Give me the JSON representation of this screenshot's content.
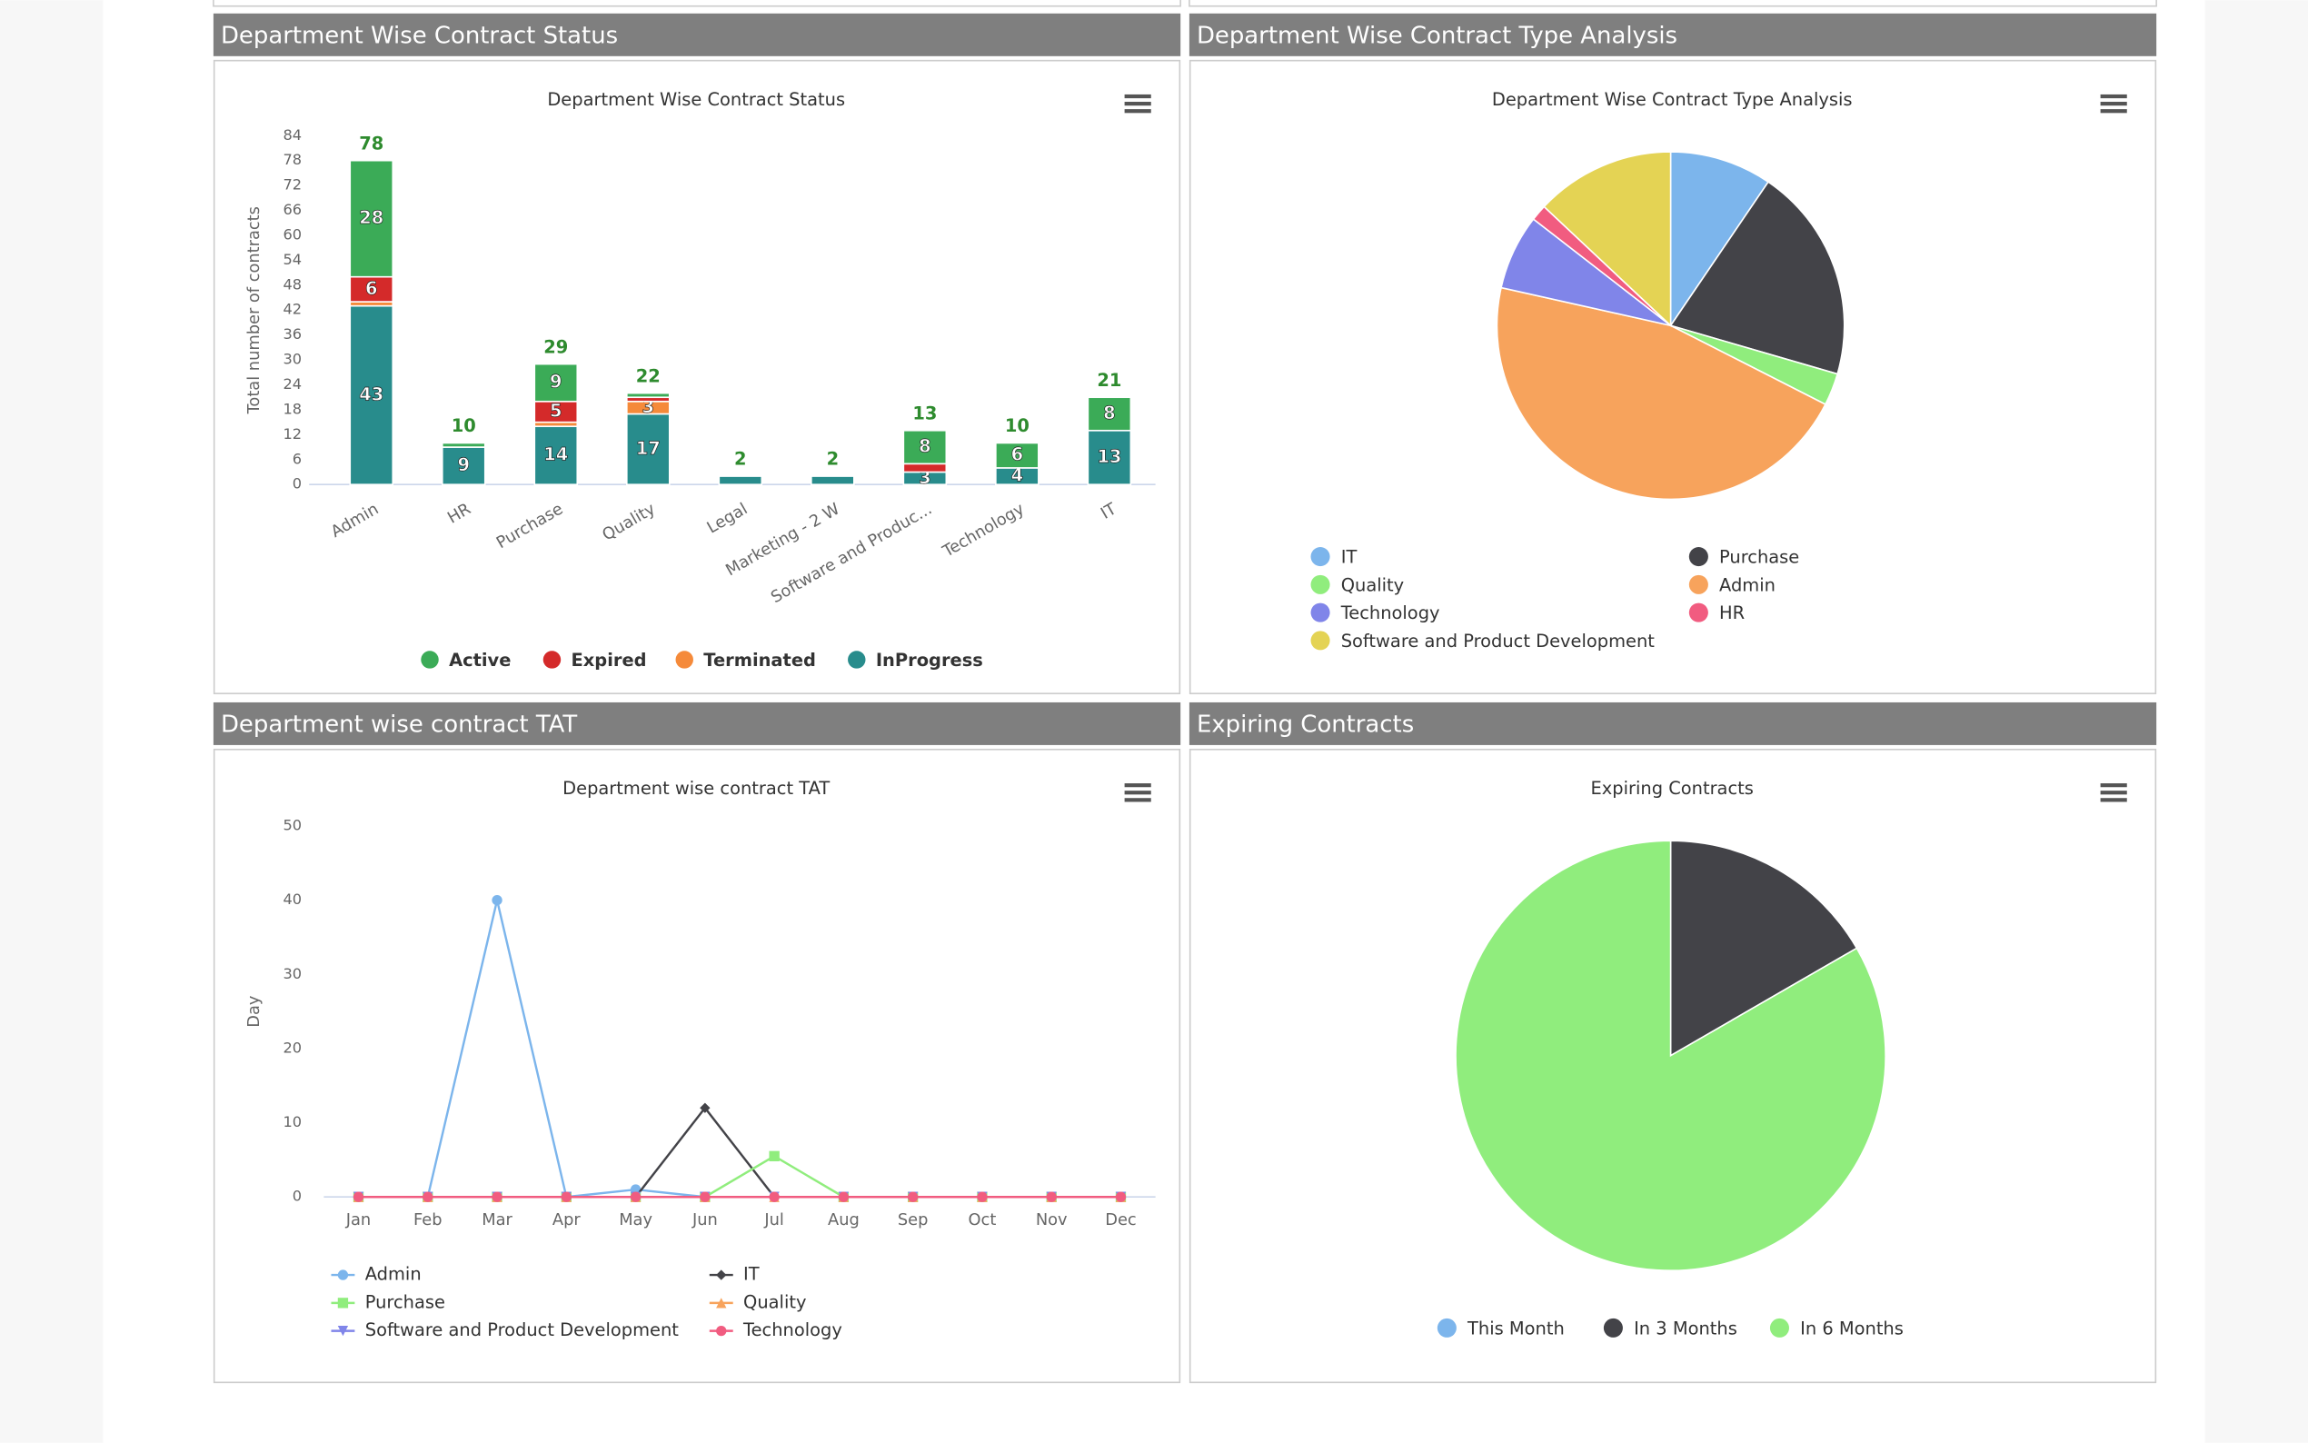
{
  "chart_data": [
    {
      "type": "bar",
      "stacked": true,
      "header": "Department Wise Contract Status",
      "title": "Department Wise Contract Status",
      "y_label": "Total number of contracts",
      "categories": [
        "Admin",
        "HR",
        "Purchase",
        "Quality",
        "Legal",
        "Marketing - 2 W",
        "Software and Produc...",
        "Technology",
        "IT"
      ],
      "series": [
        {
          "name": "Active",
          "color": "#3bab57",
          "values": [
            28,
            1,
            9,
            1,
            0,
            0,
            8,
            6,
            8
          ]
        },
        {
          "name": "Expired",
          "color": "#d42a2a",
          "values": [
            6,
            0,
            5,
            1,
            0,
            0,
            2,
            0,
            0
          ]
        },
        {
          "name": "Terminated",
          "color": "#f58a3a",
          "values": [
            1,
            0,
            1,
            3,
            0,
            0,
            0,
            0,
            0
          ]
        },
        {
          "name": "InProgress",
          "color": "#288c8c",
          "values": [
            43,
            9,
            14,
            17,
            2,
            2,
            3,
            4,
            13
          ]
        }
      ],
      "totals": [
        78,
        10,
        29,
        22,
        2,
        2,
        13,
        10,
        21
      ],
      "ylim": [
        0,
        84
      ],
      "yticks": [
        0,
        6,
        12,
        18,
        24,
        30,
        36,
        42,
        48,
        54,
        60,
        66,
        72,
        78,
        84
      ],
      "grid": false
    },
    {
      "type": "pie",
      "header": "Department Wise Contract Type Analysis",
      "title": "Department Wise Contract Type Analysis",
      "categories": [
        "IT",
        "Purchase",
        "Quality",
        "Admin",
        "Technology",
        "HR",
        "Software and Product Development"
      ],
      "values": [
        9.5,
        20,
        3,
        46,
        7,
        1.5,
        13
      ],
      "colors": [
        "#7cb5ec",
        "#434348",
        "#90ed7d",
        "#f7a35c",
        "#8085e9",
        "#f15c80",
        "#e4d354"
      ]
    },
    {
      "type": "line",
      "header": "Department wise contract TAT",
      "title": "Department wise contract TAT",
      "y_label": "Day",
      "categories": [
        "Jan",
        "Feb",
        "Mar",
        "Apr",
        "May",
        "Jun",
        "Jul",
        "Aug",
        "Sep",
        "Oct",
        "Nov",
        "Dec"
      ],
      "series": [
        {
          "name": "Admin",
          "color": "#7cb5ec",
          "symbol": "circle",
          "values": [
            0,
            0,
            40,
            0,
            1,
            0,
            0,
            0,
            0,
            0,
            0,
            0
          ]
        },
        {
          "name": "IT",
          "color": "#434348",
          "symbol": "diamond",
          "values": [
            0,
            0,
            0,
            0,
            0,
            12,
            0,
            0,
            0,
            0,
            0,
            0
          ]
        },
        {
          "name": "Purchase",
          "color": "#90ed7d",
          "symbol": "square",
          "values": [
            0,
            0,
            0,
            0,
            0,
            0,
            5.5,
            0,
            0,
            0,
            0,
            0
          ]
        },
        {
          "name": "Quality",
          "color": "#f7a35c",
          "symbol": "triangle",
          "values": [
            0,
            0,
            0,
            0,
            0,
            0,
            0,
            0,
            0,
            0,
            0,
            0
          ]
        },
        {
          "name": "Software and Product Development",
          "color": "#8085e9",
          "symbol": "triangle-down",
          "values": [
            0,
            0,
            0,
            0,
            0,
            0,
            0,
            0,
            0,
            0,
            0,
            0
          ]
        },
        {
          "name": "Technology",
          "color": "#f15c80",
          "symbol": "circle",
          "values": [
            0,
            0,
            0,
            0,
            0,
            0,
            0,
            0,
            0,
            0,
            0,
            0
          ]
        }
      ],
      "ylim": [
        0,
        50
      ],
      "yticks": [
        0,
        10,
        20,
        30,
        40,
        50
      ],
      "grid": false
    },
    {
      "type": "pie",
      "header": "Expiring Contracts",
      "title": "Expiring Contracts",
      "categories": [
        "This Month",
        "In 3 Months",
        "In 6 Months"
      ],
      "values": [
        0,
        1,
        5
      ],
      "colors": [
        "#7cb5ec",
        "#434348",
        "#90ed7d"
      ]
    }
  ]
}
